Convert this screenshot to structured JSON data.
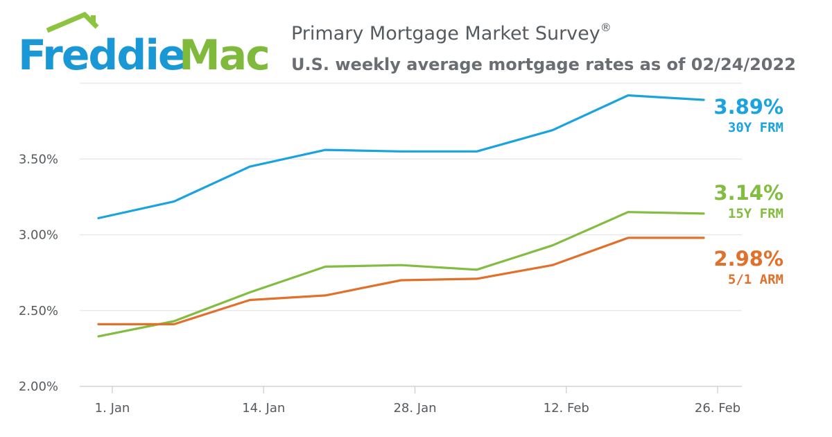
{
  "brand": {
    "logo_word1": "Freddie",
    "logo_word2": "Mac",
    "blue": "#1a98d5",
    "green": "#7fba3c"
  },
  "header": {
    "title": "Primary Mortgage Market Survey",
    "title_mark": "®",
    "subtitle": "U.S. weekly average mortgage rates as of 02/24/2022"
  },
  "chart_data": {
    "type": "line",
    "x": [
      "2021-12-30",
      "2022-01-06",
      "2022-01-13",
      "2022-01-20",
      "2022-01-27",
      "2022-02-03",
      "2022-02-10",
      "2022-02-17",
      "2022-02-24"
    ],
    "x_ticks": [
      {
        "date": "2021-12-30",
        "label": "1. Jan"
      },
      {
        "date": "2022-01-13",
        "label": "14. Jan"
      },
      {
        "date": "2022-01-27",
        "label": "28. Jan"
      },
      {
        "date": "2022-02-10",
        "label": "12. Feb"
      },
      {
        "date": "2022-02-24",
        "label": "26. Feb"
      }
    ],
    "y_ticks": [
      {
        "value": 2.0,
        "label": "2.00%"
      },
      {
        "value": 2.5,
        "label": "2.50%"
      },
      {
        "value": 3.0,
        "label": "3.00%"
      },
      {
        "value": 3.5,
        "label": "3.50%"
      },
      {
        "value": 4.0,
        "label": ""
      }
    ],
    "ylim": [
      2.0,
      4.0
    ],
    "grid": true,
    "series": [
      {
        "name": "30Y FRM",
        "color": "#1aa3de",
        "end_label": "3.89%",
        "values": [
          3.11,
          3.22,
          3.45,
          3.56,
          3.55,
          3.55,
          3.69,
          3.92,
          3.89
        ]
      },
      {
        "name": "15Y FRM",
        "color": "#82bc41",
        "end_label": "3.14%",
        "values": [
          2.33,
          2.43,
          2.62,
          2.79,
          2.8,
          2.77,
          2.93,
          3.15,
          3.14
        ]
      },
      {
        "name": "5/1 ARM",
        "color": "#e0702a",
        "end_label": "2.98%",
        "values": [
          2.41,
          2.41,
          2.57,
          2.6,
          2.7,
          2.71,
          2.8,
          2.98,
          2.98
        ]
      }
    ]
  }
}
